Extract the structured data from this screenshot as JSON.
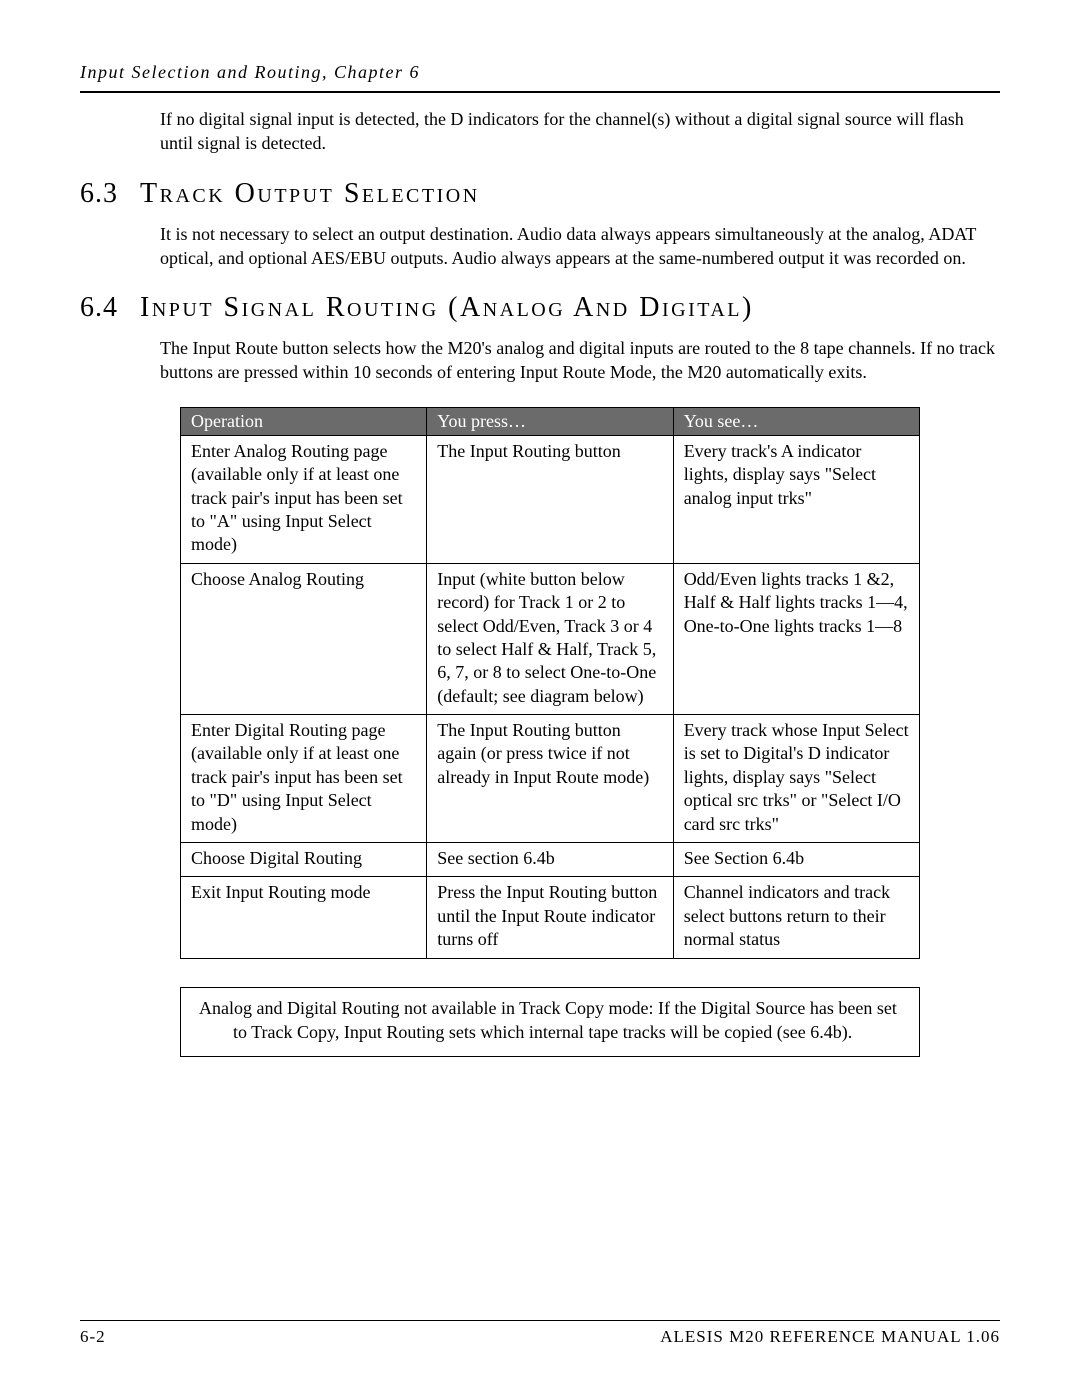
{
  "running_head": "Input Selection and Routing, Chapter 6",
  "intro_para": "If no digital signal input is detected, the D indicators for the channel(s) without a digital signal source will flash until signal is detected.",
  "sec63": {
    "num": "6.3",
    "title": "Track Output Selection",
    "body": "It is not necessary to select an output destination. Audio data always appears simultaneously at the analog, ADAT optical, and optional AES/EBU outputs. Audio always appears at the same-numbered output it was recorded on."
  },
  "sec64": {
    "num": "6.4",
    "title": "Input Signal Routing (Analog And Digital)",
    "body": "The Input Route button selects how the M20's analog and digital inputs are routed to the 8 tape channels. If no track buttons are pressed within 10 seconds of entering Input Route Mode, the M20 automatically exits."
  },
  "table": {
    "headers": [
      "Operation",
      "You press…",
      "You see…"
    ],
    "rows": [
      [
        "Enter Analog Routing page (available only if at least one track pair's input has been set to \"A\" using Input Select mode)",
        "The Input Routing button",
        "Every track's A indicator lights, display says \"Select analog input trks\""
      ],
      [
        "Choose Analog Routing",
        "Input (white button below record) for Track 1 or 2 to select Odd/Even, Track 3 or 4 to select Half & Half, Track 5, 6, 7, or 8 to select One-to-One (default; see diagram below)",
        "Odd/Even lights tracks 1 &2, Half & Half lights tracks 1—4, One-to-One lights tracks 1—8"
      ],
      [
        "Enter Digital Routing page (available only if at least one track pair's input has been set to \"D\" using Input Select mode)",
        "The Input Routing button again (or press twice if not already in Input Route mode)",
        "Every track whose Input Select is set to Digital's D indicator lights, display says \"Select optical src trks\" or \"Select I/O card src trks\""
      ],
      [
        "Choose Digital Routing",
        "See section 6.4b",
        "See Section 6.4b"
      ],
      [
        "Exit Input Routing mode",
        "Press the Input Routing button until the Input Route indicator turns off",
        "Channel indicators and track select buttons return to their normal status"
      ]
    ]
  },
  "note": "Analog and Digital Routing not available in Track Copy mode: If the Digital Source has been set to Track Copy, Input Routing sets which internal tape tracks will be copied (see 6.4b).",
  "footer": {
    "left": "6-2",
    "right": "ALESIS M20 REFERENCE MANUAL 1.06"
  }
}
